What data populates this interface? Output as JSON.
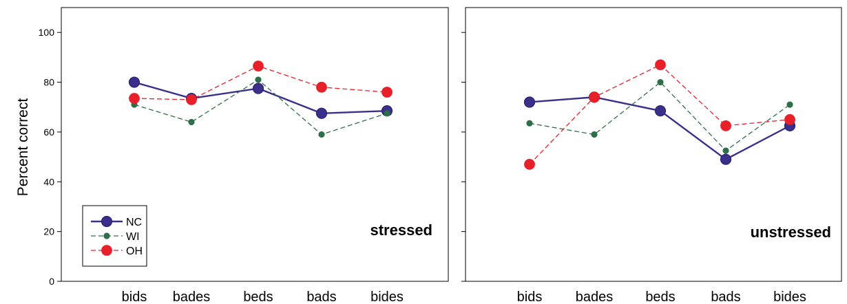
{
  "chart_data": {
    "type": "line",
    "ylabel": "Percent correct",
    "ylim": [
      0,
      110
    ],
    "yticks": [
      0,
      20,
      40,
      60,
      80,
      100
    ],
    "categories": [
      "bids",
      "bades",
      "beds",
      "bads",
      "bides"
    ],
    "legend": {
      "position": "bottom-left (left panel)",
      "entries": [
        "NC",
        "WI",
        "OH"
      ]
    },
    "colors": {
      "NC": "#3a2f8a",
      "WI": "#2e6e4a",
      "OH": "#e8202a"
    },
    "panels": [
      {
        "label": "stressed",
        "series": [
          {
            "name": "NC",
            "values": [
              80,
              73.5,
              77.5,
              67.5,
              68.5
            ]
          },
          {
            "name": "WI",
            "values": [
              71,
              64,
              81,
              59,
              67.5
            ]
          },
          {
            "name": "OH",
            "values": [
              73.5,
              73,
              86.5,
              78,
              76
            ]
          }
        ]
      },
      {
        "label": "unstressed",
        "series": [
          {
            "name": "NC",
            "values": [
              72,
              74,
              68.5,
              49,
              62.5
            ]
          },
          {
            "name": "WI",
            "values": [
              63.5,
              59,
              80,
              52.5,
              71
            ]
          },
          {
            "name": "OH",
            "values": [
              47,
              74,
              87,
              62.5,
              65
            ]
          }
        ]
      }
    ]
  }
}
